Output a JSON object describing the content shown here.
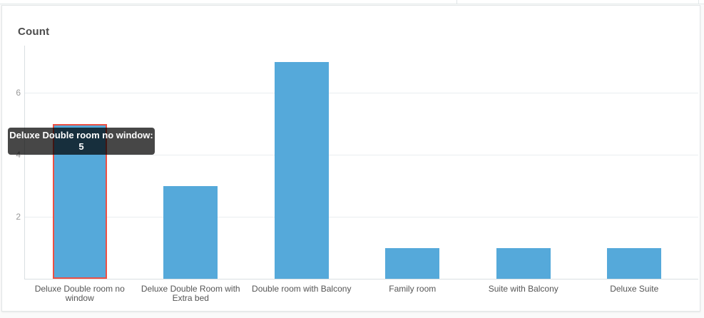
{
  "panel": {
    "title": "Count"
  },
  "tooltip": {
    "line1": "Deluxe Double room no window:",
    "line2": "5"
  },
  "colors": {
    "bar": "#55a9da",
    "selected_bar_border": "#ec5044",
    "gridline": "#e9eef0",
    "axis": "#d9dfe2",
    "tick_text": "#999999",
    "label_text": "#555555",
    "tooltip_bg": "rgba(0,0,0,0.72)",
    "tooltip_text": "#ffffff",
    "card_bg": "#ffffff",
    "card_border": "#e2e6e7"
  },
  "chart_data": {
    "type": "bar",
    "title": "Count",
    "categories": [
      "Deluxe Double room no window",
      "Deluxe Double Room with Extra bed",
      "Double room with Balcony",
      "Family room",
      "Suite with Balcony",
      "Deluxe Suite"
    ],
    "values": [
      5,
      3,
      7,
      1,
      1,
      1
    ],
    "selected_index": 0,
    "selected_value_label": "5",
    "yticks": [
      2,
      4,
      6
    ],
    "ylim": [
      0,
      7.5
    ],
    "grid": true,
    "legend": "none",
    "xlabel": "",
    "ylabel": "Count"
  }
}
